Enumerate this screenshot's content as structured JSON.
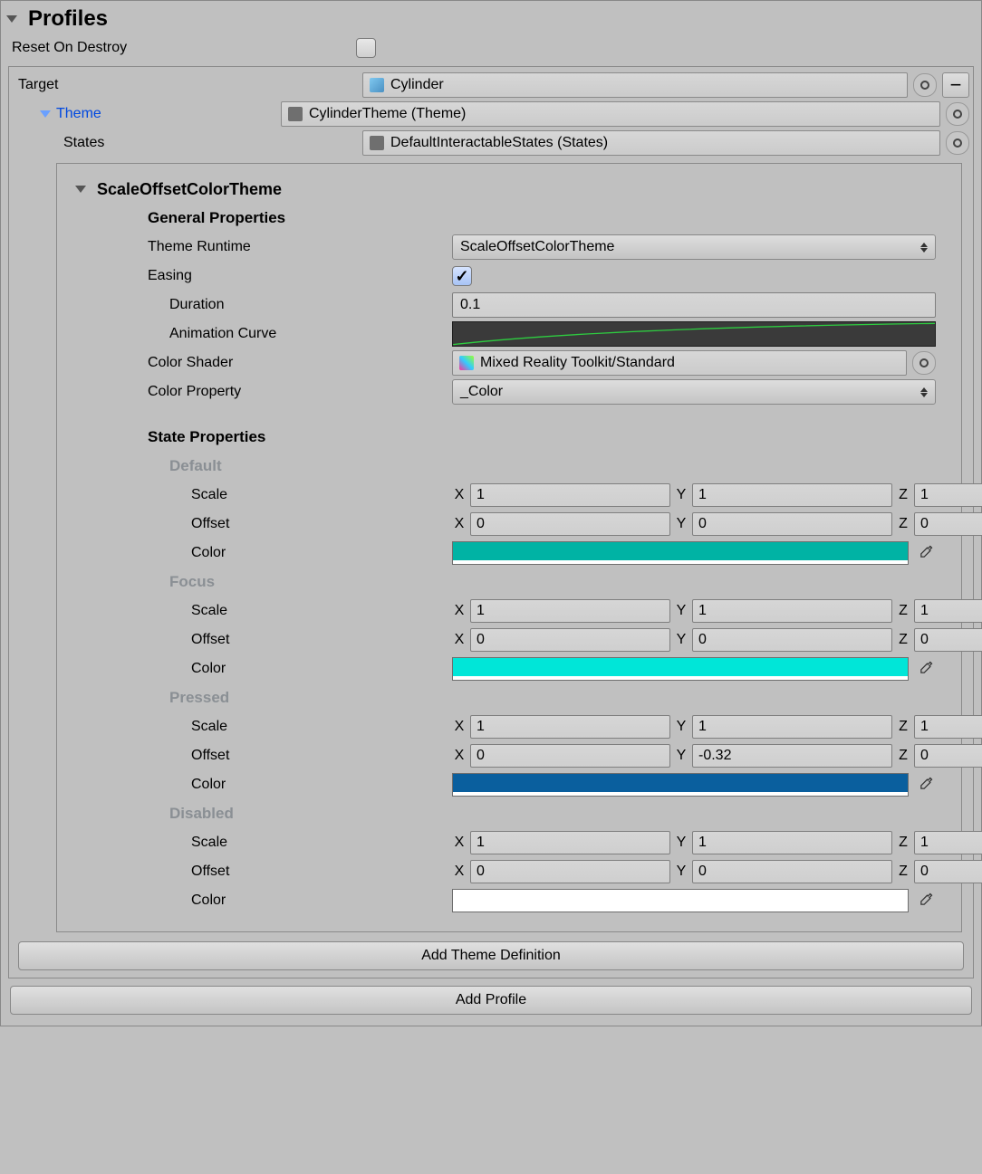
{
  "header": {
    "title": "Profiles"
  },
  "resetOnDestroy": {
    "label": "Reset On Destroy",
    "checked": false
  },
  "target": {
    "label": "Target",
    "value": "Cylinder"
  },
  "theme": {
    "label": "Theme",
    "value": "CylinderTheme (Theme)"
  },
  "statesRow": {
    "label": "States",
    "value": "DefaultInteractableStates (States)"
  },
  "themeDef": {
    "title": "ScaleOffsetColorTheme",
    "general": {
      "title": "General Properties",
      "runtime": {
        "label": "Theme Runtime",
        "value": "ScaleOffsetColorTheme"
      },
      "easing": {
        "label": "Easing",
        "checked": true
      },
      "duration": {
        "label": "Duration",
        "value": "0.1"
      },
      "animCurve": {
        "label": "Animation Curve"
      },
      "colorShader": {
        "label": "Color Shader",
        "value": "Mixed Reality Toolkit/Standard"
      },
      "colorProp": {
        "label": "Color Property",
        "value": "_Color"
      }
    },
    "stateProps": {
      "title": "State Properties",
      "axis": {
        "x": "X",
        "y": "Y",
        "z": "Z",
        "scale": "Scale",
        "offset": "Offset",
        "color": "Color"
      },
      "states": [
        {
          "name": "Default",
          "scale": {
            "x": "1",
            "y": "1",
            "z": "1"
          },
          "offset": {
            "x": "0",
            "y": "0",
            "z": "0"
          },
          "color": "#00b3a4"
        },
        {
          "name": "Focus",
          "scale": {
            "x": "1",
            "y": "1",
            "z": "1"
          },
          "offset": {
            "x": "0",
            "y": "0",
            "z": "0"
          },
          "color": "#00e6d8"
        },
        {
          "name": "Pressed",
          "scale": {
            "x": "1",
            "y": "1",
            "z": "1"
          },
          "offset": {
            "x": "0",
            "y": "-0.32",
            "z": "0"
          },
          "color": "#0a5f9e"
        },
        {
          "name": "Disabled",
          "scale": {
            "x": "1",
            "y": "1",
            "z": "1"
          },
          "offset": {
            "x": "0",
            "y": "0",
            "z": "0"
          },
          "color": "#ffffff"
        }
      ]
    }
  },
  "buttons": {
    "addThemeDef": "Add Theme Definition",
    "addProfile": "Add Profile"
  }
}
